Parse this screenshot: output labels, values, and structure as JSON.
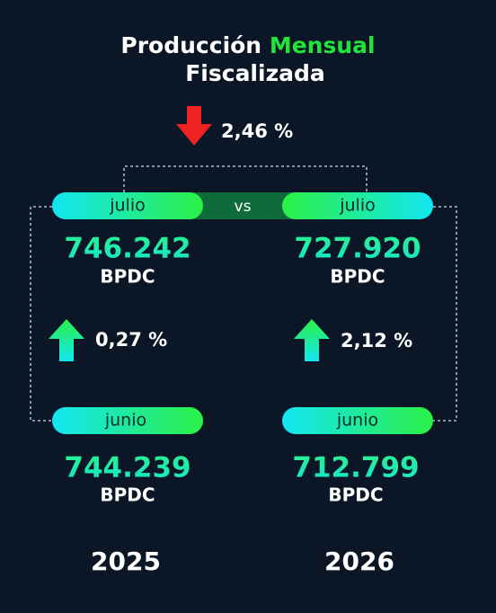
{
  "title": {
    "part1": "Producción",
    "part2": "Mensual",
    "part3": "Fiscalizada"
  },
  "top_change": "2,46 %",
  "vs": "vs",
  "left": {
    "top_label": "julio",
    "top_value": "746.242",
    "top_unit": "BPDC",
    "change": "0,27 %",
    "bottom_label": "junio",
    "bottom_value": "744.239",
    "bottom_unit": "BPDC",
    "year": "2025"
  },
  "right": {
    "top_label": "julio",
    "top_value": "727.920",
    "top_unit": "BPDC",
    "change": "2,12 %",
    "bottom_label": "junio",
    "bottom_value": "712.799",
    "bottom_unit": "BPDC",
    "year": "2026"
  }
}
